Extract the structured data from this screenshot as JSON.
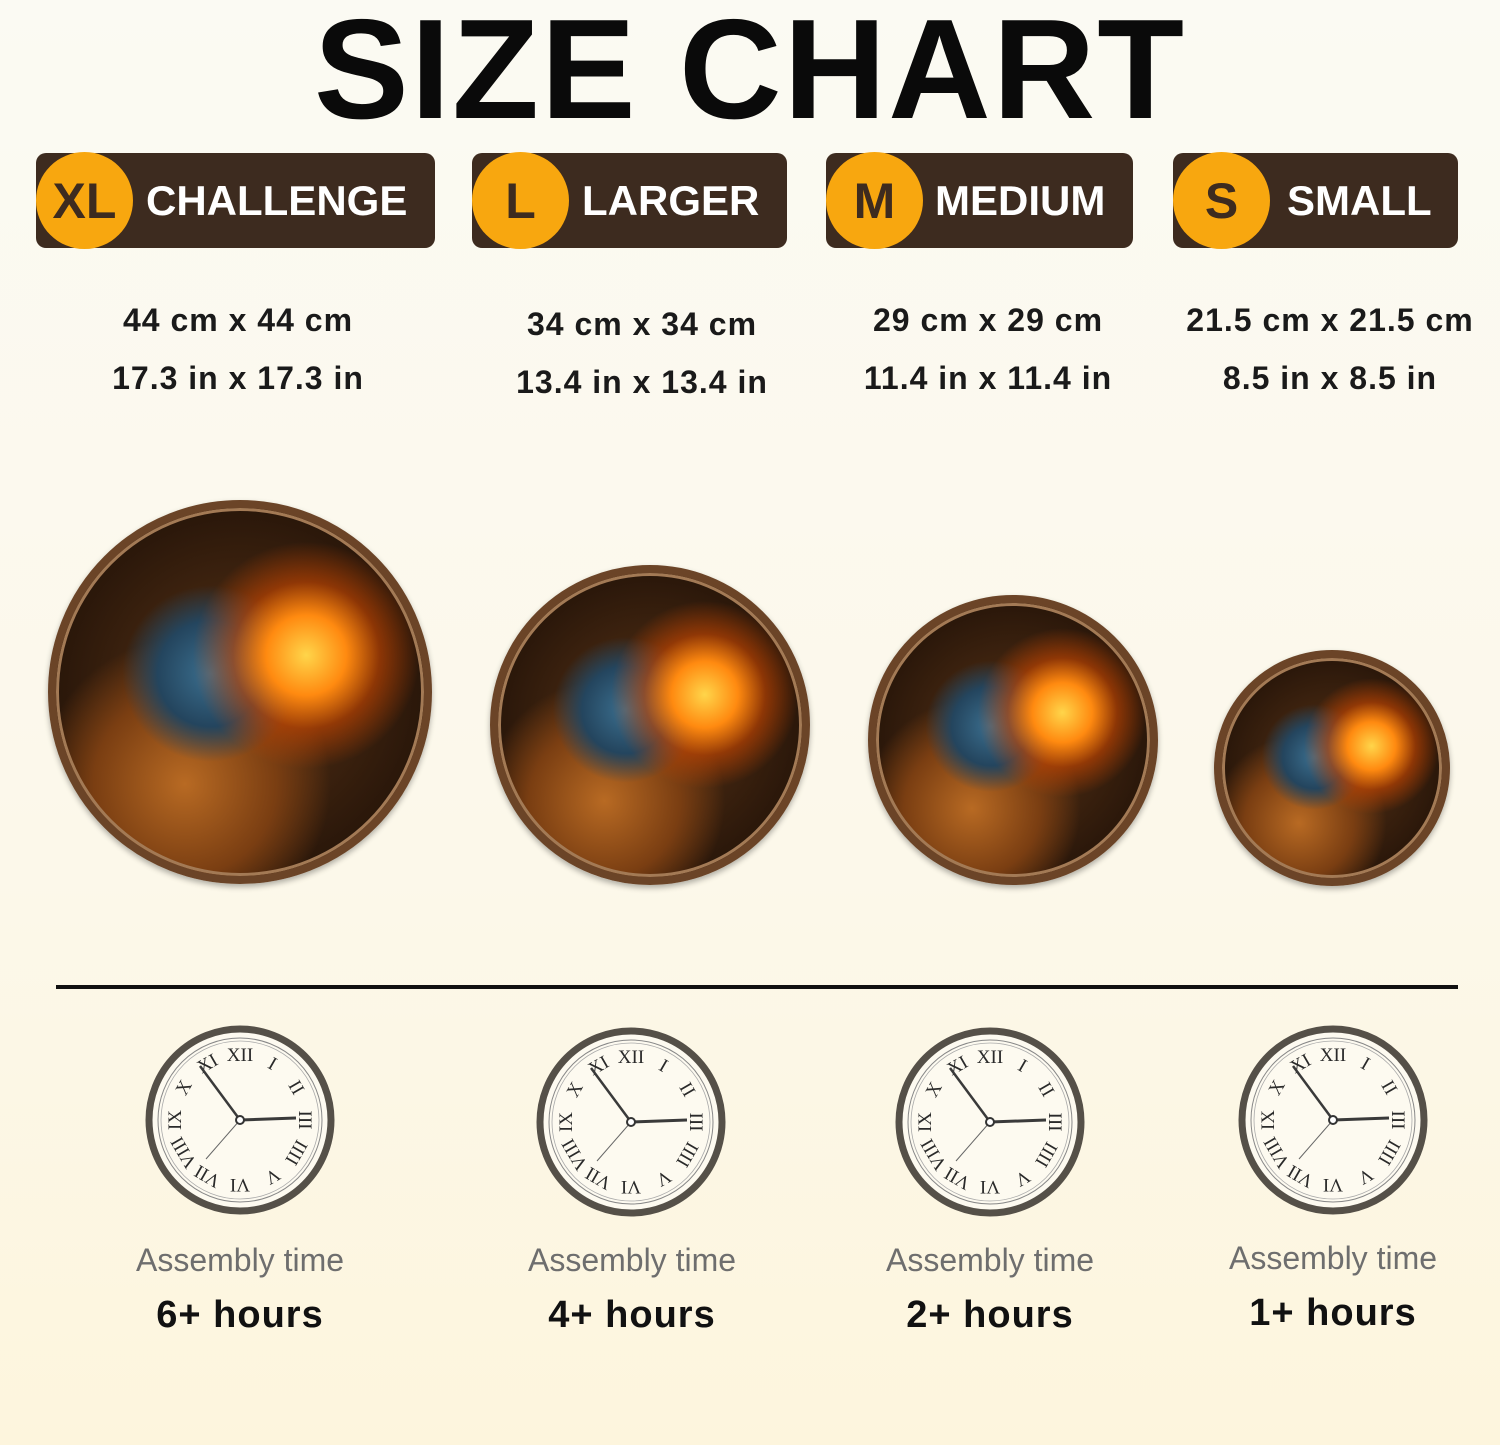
{
  "title": "SIZE CHART",
  "sizes": [
    {
      "code": "XL",
      "label": "CHALLENGE",
      "metric": "44 cm x 44 cm",
      "imperial": "17.3 in x 17.3 in",
      "assembly_label": "Assembly time",
      "assembly_time": "6+ hours"
    },
    {
      "code": "L",
      "label": "LARGER",
      "metric": "34 cm x 34 cm",
      "imperial": "13.4 in x 13.4 in",
      "assembly_label": "Assembly time",
      "assembly_time": "4+ hours"
    },
    {
      "code": "M",
      "label": "MEDIUM",
      "metric": "29 cm x 29 cm",
      "imperial": "11.4 in x 11.4 in",
      "assembly_label": "Assembly time",
      "assembly_time": "2+ hours"
    },
    {
      "code": "S",
      "label": "SMALL",
      "metric": "21.5 cm x 21.5 cm",
      "imperial": "8.5 in x 8.5 in",
      "assembly_label": "Assembly time",
      "assembly_time": "1+ hours"
    }
  ],
  "clock": {
    "numerals": [
      "XII",
      "I",
      "II",
      "III",
      "IIII",
      "V",
      "VI",
      "VII",
      "VIII",
      "IX",
      "X",
      "XI"
    ]
  },
  "colors": {
    "badge_bg": "#3d2b1f",
    "badge_circle": "#f8a70f",
    "clock_ring": "#555048"
  }
}
